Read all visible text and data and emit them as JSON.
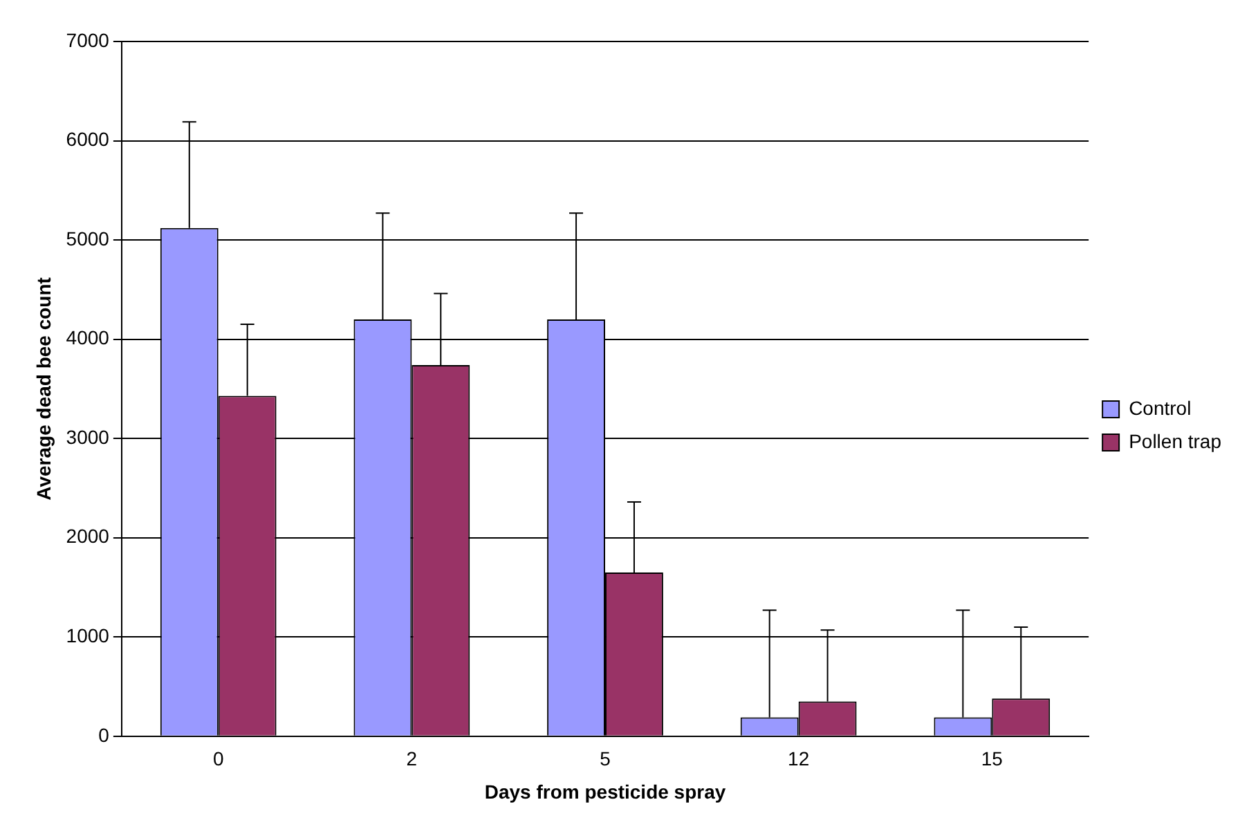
{
  "chart_data": {
    "type": "bar",
    "xlabel": "Days from pesticide spray",
    "ylabel": "Average dead bee count",
    "categories": [
      "0",
      "2",
      "5",
      "12",
      "15"
    ],
    "series": [
      {
        "name": "Control",
        "color": "#9999ff",
        "values": [
          5120,
          4200,
          4200,
          190,
          190
        ],
        "errors": [
          [
            5120,
            6190
          ],
          [
            4200,
            5270
          ],
          [
            4200,
            5270
          ],
          [
            190,
            1270
          ],
          [
            190,
            1270
          ]
        ]
      },
      {
        "name": "Pollen trap",
        "color": "#993366",
        "values": [
          3430,
          3740,
          1650,
          350,
          380
        ],
        "errors": [
          [
            3430,
            4150
          ],
          [
            3740,
            4460
          ],
          [
            1650,
            2360
          ],
          [
            350,
            1070
          ],
          [
            380,
            1100
          ]
        ]
      }
    ],
    "ylim": [
      0,
      7000
    ],
    "yticks": [
      0,
      1000,
      2000,
      3000,
      4000,
      5000,
      6000,
      7000
    ],
    "grid": "y",
    "legend": "right"
  }
}
